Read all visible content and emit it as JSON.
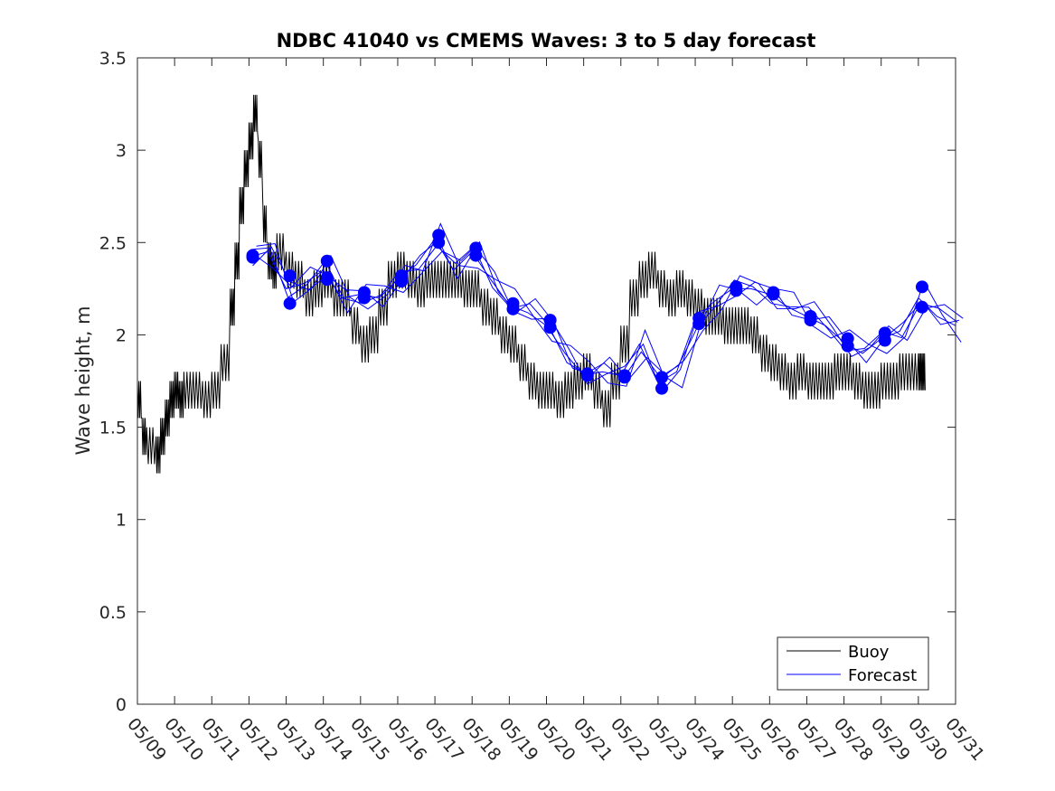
{
  "chart_data": {
    "type": "line",
    "title": "NDBC 41040 vs CMEMS Waves: 3 to 5 day forecast",
    "xlabel": "",
    "ylabel": "Wave height, m",
    "x_tick_labels": [
      "05/09",
      "05/10",
      "05/11",
      "05/12",
      "05/13",
      "05/14",
      "05/15",
      "05/16",
      "05/17",
      "05/18",
      "05/19",
      "05/20",
      "05/21",
      "05/22",
      "05/23",
      "05/24",
      "05/25",
      "05/26",
      "05/27",
      "05/28",
      "05/29",
      "05/30",
      "05/31"
    ],
    "y_tick_labels": [
      "0",
      "0.5",
      "1",
      "1.5",
      "2",
      "2.5",
      "3",
      "3.5"
    ],
    "ylim": [
      0,
      3.5
    ],
    "xlim_days_after_05_09": [
      0,
      22
    ],
    "grid": false,
    "legend_location": "bottom-right",
    "colors": {
      "buoy": "#000000",
      "forecast": "#0000ff",
      "axes": "#262626"
    },
    "series": [
      {
        "name": "Buoy",
        "x_days_after_05_09": [
          0,
          0.125,
          0.25,
          0.5,
          0.625,
          0.75,
          0.875,
          1.0,
          1.125,
          1.25,
          1.5,
          1.75,
          2.0,
          2.25,
          2.5,
          2.625,
          2.75,
          2.875,
          3.0,
          3.125,
          3.25,
          3.375,
          3.5,
          3.625,
          3.75,
          4.0,
          4.25,
          4.5,
          4.75,
          5.0,
          5.25,
          5.5,
          5.75,
          6.0,
          6.25,
          6.5,
          6.75,
          7.0,
          7.25,
          7.5,
          7.75,
          8.0,
          8.25,
          8.5,
          8.75,
          9.0,
          9.25,
          9.5,
          9.75,
          10.0,
          10.25,
          10.5,
          10.75,
          11.0,
          11.25,
          11.5,
          11.75,
          12.0,
          12.25,
          12.5,
          12.75,
          13.0,
          13.25,
          13.5,
          13.75,
          14.0,
          14.25,
          14.5,
          14.75,
          15.0,
          15.25,
          15.5,
          15.75,
          16.0,
          16.25,
          16.5,
          16.75,
          17.0,
          17.25,
          17.5,
          17.75,
          18.0,
          18.25,
          18.5,
          18.75,
          19.0,
          19.25,
          19.5,
          19.75,
          20.0,
          20.25,
          20.5,
          20.75,
          21.0,
          21.1
        ],
        "values": [
          1.65,
          1.45,
          1.4,
          1.35,
          1.45,
          1.55,
          1.65,
          1.7,
          1.65,
          1.7,
          1.7,
          1.65,
          1.7,
          1.85,
          2.15,
          2.4,
          2.7,
          2.9,
          3.05,
          3.2,
          2.95,
          2.6,
          2.4,
          2.35,
          2.45,
          2.35,
          2.3,
          2.2,
          2.25,
          2.3,
          2.2,
          2.2,
          2.05,
          1.95,
          2.0,
          2.15,
          2.3,
          2.35,
          2.3,
          2.25,
          2.3,
          2.3,
          2.3,
          2.3,
          2.25,
          2.25,
          2.15,
          2.1,
          2.0,
          1.95,
          1.85,
          1.75,
          1.7,
          1.7,
          1.65,
          1.7,
          1.75,
          1.8,
          1.7,
          1.6,
          1.75,
          1.95,
          2.2,
          2.3,
          2.35,
          2.25,
          2.2,
          2.25,
          2.2,
          2.15,
          2.1,
          2.1,
          2.05,
          2.05,
          2.05,
          2.0,
          1.9,
          1.85,
          1.8,
          1.75,
          1.8,
          1.75,
          1.75,
          1.75,
          1.8,
          1.8,
          1.75,
          1.7,
          1.7,
          1.75,
          1.75,
          1.8,
          1.8,
          1.8,
          1.8
        ]
      },
      {
        "name": "Forecast",
        "x_days_after_05_09": [
          3.0,
          3.5,
          4.0,
          4.5,
          5.0,
          5.5,
          6.0,
          6.5,
          7.0,
          7.5,
          8.0,
          8.5,
          9.0,
          9.5,
          10.0,
          10.5,
          11.0,
          11.5,
          12.0,
          12.5,
          13.0,
          13.5,
          14.0,
          14.5,
          15.0,
          15.5,
          16.0,
          16.5,
          17.0,
          17.5,
          18.0,
          18.5,
          19.0,
          19.5,
          20.0,
          20.5,
          21.0,
          21.5,
          22.0
        ],
        "values": [
          2.42,
          2.45,
          2.25,
          2.28,
          2.35,
          2.2,
          2.22,
          2.2,
          2.3,
          2.38,
          2.52,
          2.35,
          2.45,
          2.3,
          2.16,
          2.12,
          2.05,
          1.9,
          1.78,
          1.8,
          1.78,
          1.95,
          1.74,
          1.8,
          2.08,
          2.18,
          2.25,
          2.25,
          2.22,
          2.15,
          2.1,
          2.05,
          1.96,
          1.9,
          1.98,
          2.02,
          2.2,
          2.1,
          2.05
        ]
      }
    ],
    "markers": {
      "x_days_after_05_09": [
        3.1,
        3.1,
        4.1,
        4.1,
        5.1,
        5.1,
        5.1,
        6.1,
        6.1,
        7.1,
        7.1,
        8.1,
        8.1,
        9.1,
        9.1,
        10.1,
        10.1,
        11.1,
        11.1,
        12.1,
        12.1,
        13.1,
        13.1,
        14.1,
        14.1,
        15.1,
        15.1,
        16.1,
        16.1,
        17.1,
        17.1,
        18.1,
        18.1,
        19.1,
        19.1,
        20.1,
        20.1,
        21.1,
        21.1
      ],
      "values": [
        2.42,
        2.43,
        2.32,
        2.17,
        2.4,
        2.3,
        2.31,
        2.23,
        2.2,
        2.32,
        2.29,
        2.54,
        2.5,
        2.47,
        2.43,
        2.17,
        2.14,
        2.08,
        2.04,
        1.79,
        1.78,
        1.78,
        1.77,
        1.77,
        1.71,
        2.09,
        2.06,
        2.26,
        2.24,
        2.23,
        2.22,
        2.1,
        2.08,
        1.98,
        1.94,
        2.01,
        1.97,
        2.26,
        2.15
      ]
    },
    "legend": [
      "Buoy",
      "Forecast"
    ]
  }
}
